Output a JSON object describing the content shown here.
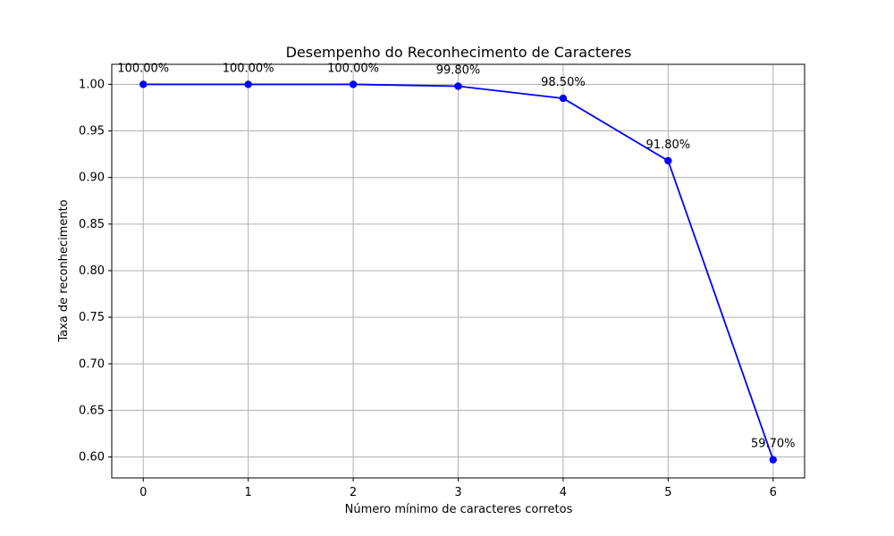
{
  "chart_data": {
    "type": "line",
    "title": "Desempenho do Reconhecimento de Caracteres",
    "xlabel": "Número mínimo de caracteres corretos",
    "ylabel": "Taxa de reconhecimento",
    "x": [
      0,
      1,
      2,
      3,
      4,
      5,
      6
    ],
    "values": [
      1.0,
      1.0,
      1.0,
      0.998,
      0.985,
      0.918,
      0.597
    ],
    "data_labels": [
      "100.00%",
      "100.00%",
      "100.00%",
      "99.80%",
      "98.50%",
      "91.80%",
      "59.70%"
    ],
    "x_ticks": [
      "0",
      "1",
      "2",
      "3",
      "4",
      "5",
      "6"
    ],
    "y_ticks": [
      "0.60",
      "0.65",
      "0.70",
      "0.75",
      "0.80",
      "0.85",
      "0.90",
      "0.95",
      "1.00"
    ],
    "xlim": [
      -0.3,
      6.3
    ],
    "ylim": [
      0.5775,
      1.0215
    ],
    "grid": true,
    "line_color": "#0000ff",
    "marker_color": "#0000ff"
  }
}
